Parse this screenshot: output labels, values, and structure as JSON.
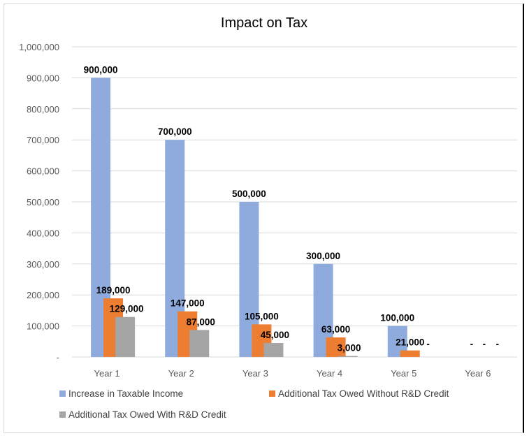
{
  "chart_data": {
    "type": "bar",
    "title": "Impact on Tax",
    "categories": [
      "Year 1",
      "Year 2",
      "Year 3",
      "Year 4",
      "Year 5",
      "Year 6"
    ],
    "ylim": [
      0,
      1000000
    ],
    "yticks": [
      0,
      100000,
      200000,
      300000,
      400000,
      500000,
      600000,
      700000,
      800000,
      900000,
      1000000
    ],
    "ytick_labels": [
      "-",
      "100,000",
      "200,000",
      "300,000",
      "400,000",
      "500,000",
      "600,000",
      "700,000",
      "800,000",
      "900,000",
      "1,000,000"
    ],
    "grid": true,
    "legend_position": "bottom",
    "series": [
      {
        "name": "Increase in Taxable Income",
        "color": "#8faadc",
        "values": [
          900000,
          700000,
          500000,
          300000,
          100000,
          0
        ],
        "labels": [
          "900,000",
          "700,000",
          "500,000",
          "300,000",
          "100,000",
          "-"
        ]
      },
      {
        "name": "Additional Tax Owed Without R&D Credit",
        "color": "#ed7d31",
        "values": [
          189000,
          147000,
          105000,
          63000,
          21000,
          0
        ],
        "labels": [
          "189,000",
          "147,000",
          "105,000",
          "63,000",
          "21,000",
          "-"
        ]
      },
      {
        "name": "Additional Tax Owed With R&D Credit",
        "color": "#a5a5a5",
        "values": [
          129000,
          87000,
          45000,
          3000,
          0,
          0
        ],
        "labels": [
          "129,000",
          "87,000",
          "45,000",
          "3,000",
          "-",
          "-"
        ]
      }
    ]
  }
}
